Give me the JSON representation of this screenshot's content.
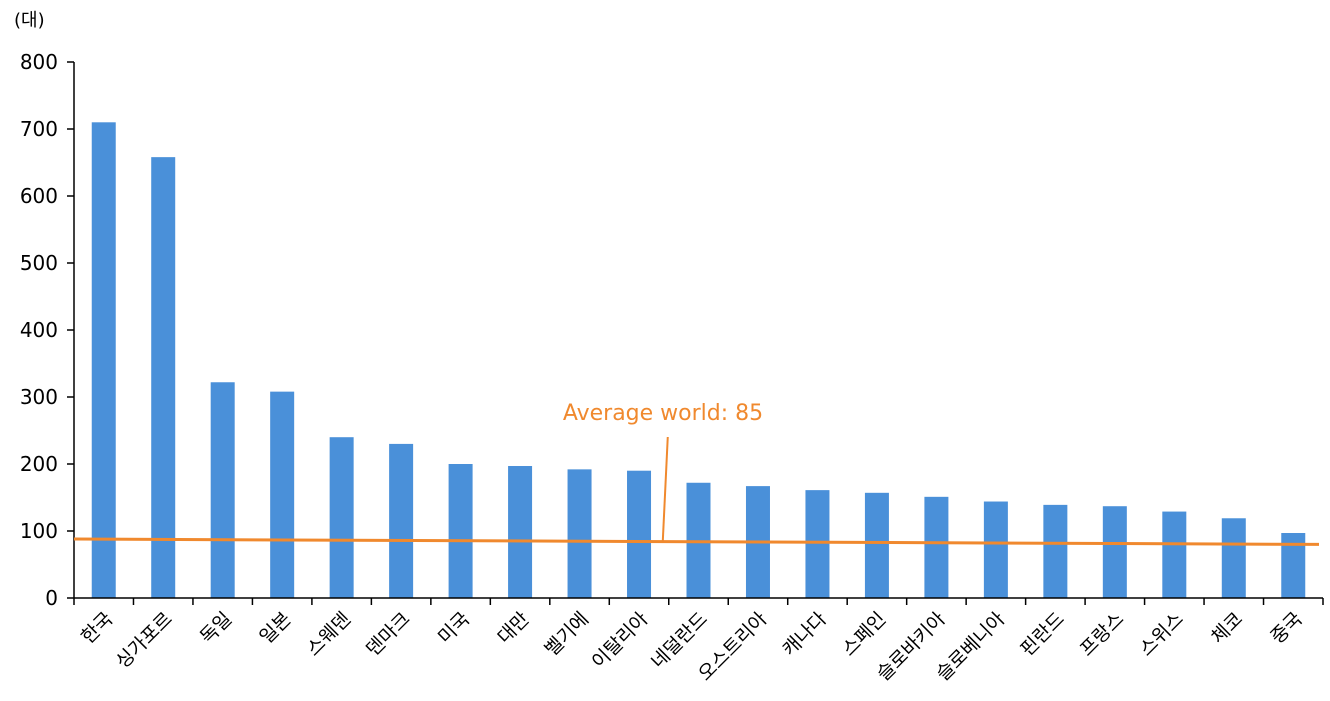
{
  "chart_data": {
    "type": "bar",
    "unit_label": "(대)",
    "categories": [
      "한국",
      "싱가포르",
      "독일",
      "일본",
      "스웨덴",
      "덴마크",
      "미국",
      "대만",
      "벨기에",
      "이탈리아",
      "네덜란드",
      "오스트리아",
      "캐나다",
      "스페인",
      "슬로바키아",
      "슬로베니아",
      "핀란드",
      "프랑스",
      "스위스",
      "체코",
      "중국"
    ],
    "values": [
      710,
      658,
      322,
      308,
      240,
      230,
      200,
      197,
      192,
      190,
      172,
      167,
      161,
      157,
      151,
      144,
      139,
      137,
      129,
      119,
      97
    ],
    "ylim": [
      0,
      800
    ],
    "yticks": [
      0,
      100,
      200,
      300,
      400,
      500,
      600,
      700,
      800
    ],
    "grid": false,
    "bar_color": "#4A90D9",
    "reference_line": {
      "label": "Average world: 85",
      "start_value": 88,
      "end_value": 80,
      "color": "#F0892E"
    }
  }
}
